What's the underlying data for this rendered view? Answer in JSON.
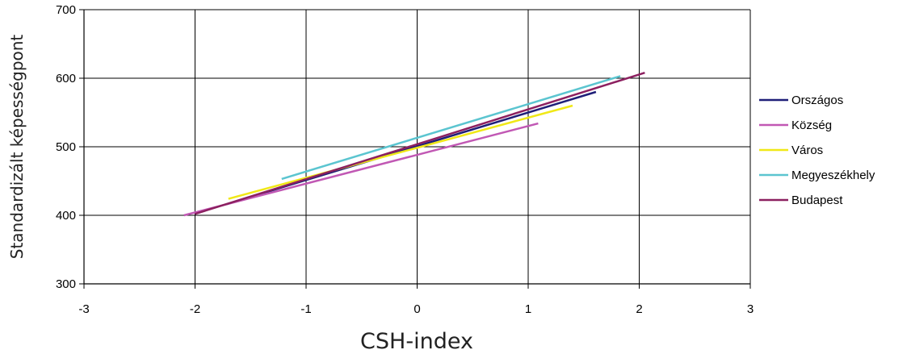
{
  "chart_data": {
    "type": "line",
    "xlabel": "CSH-index",
    "ylabel": "Standardizált képességpont",
    "xlim": [
      -3,
      3
    ],
    "ylim": [
      300,
      700
    ],
    "x_ticks": [
      "-3",
      "-2",
      "-1",
      "0",
      "1",
      "2",
      "3"
    ],
    "y_ticks": [
      "300",
      "400",
      "500",
      "600",
      "700"
    ],
    "grid": true,
    "legend_position": "right",
    "series": [
      {
        "name": "Országos",
        "color": "#1f1f78",
        "points": [
          [
            -1.72,
            416
          ],
          [
            1.61,
            580
          ]
        ]
      },
      {
        "name": "Község",
        "color": "#c158b4",
        "points": [
          [
            -2.1,
            400
          ],
          [
            1.09,
            534
          ]
        ]
      },
      {
        "name": "Város",
        "color": "#f0e817",
        "points": [
          [
            -1.7,
            424
          ],
          [
            1.4,
            560
          ]
        ]
      },
      {
        "name": "Megyeszékhely",
        "color": "#5bc5d0",
        "points": [
          [
            -1.22,
            453
          ],
          [
            1.83,
            603
          ]
        ]
      },
      {
        "name": "Budapest",
        "color": "#8c2060",
        "points": [
          [
            -2.0,
            402
          ],
          [
            2.05,
            608
          ]
        ]
      }
    ]
  }
}
